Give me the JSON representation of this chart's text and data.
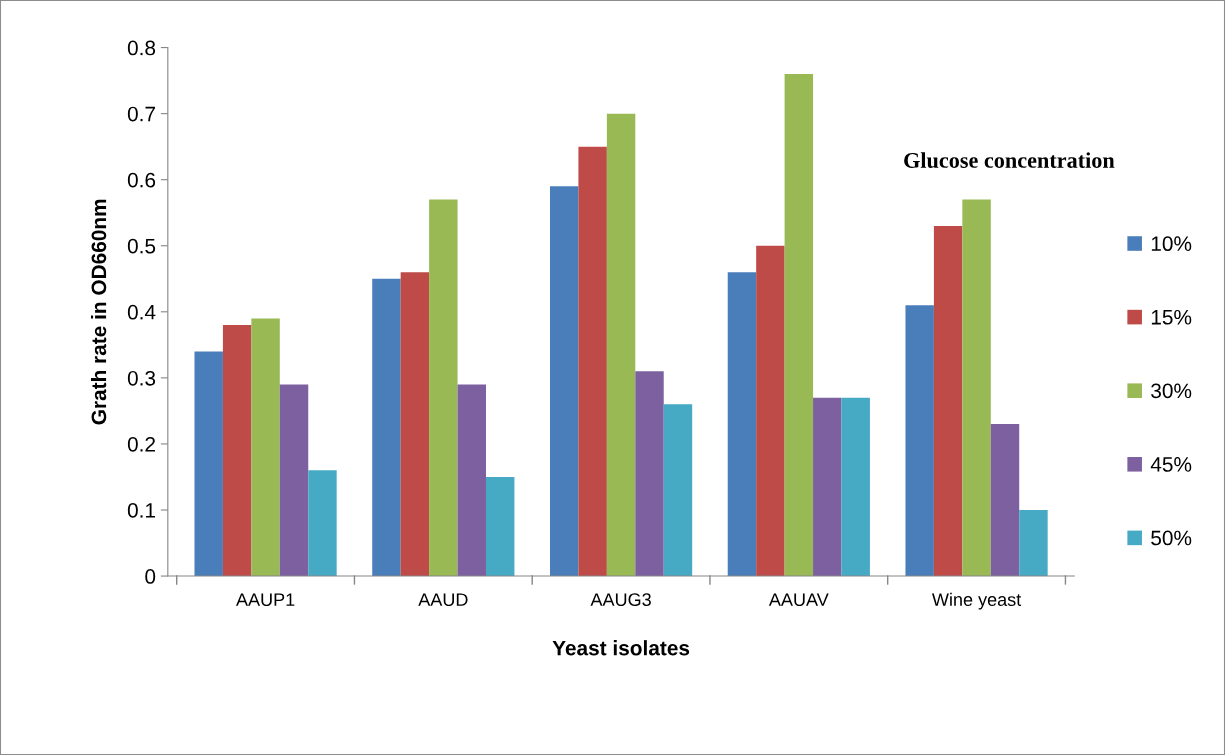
{
  "chart_data": {
    "type": "bar",
    "xlabel": "Yeast isolates",
    "ylabel": "Grath rate in OD660nm",
    "legend_title": "Glucose concentration",
    "categories": [
      "AAUP1",
      "AAUD",
      "AAUG3",
      "AAUAV",
      "Wine yeast"
    ],
    "series": [
      {
        "name": "10%",
        "color": "#4a7ebb",
        "values": [
          0.34,
          0.45,
          0.59,
          0.46,
          0.41
        ]
      },
      {
        "name": "15%",
        "color": "#be4b48",
        "values": [
          0.38,
          0.46,
          0.65,
          0.5,
          0.53
        ]
      },
      {
        "name": "30%",
        "color": "#98b954",
        "values": [
          0.39,
          0.57,
          0.7,
          0.76,
          0.57
        ]
      },
      {
        "name": "45%",
        "color": "#7d60a0",
        "values": [
          0.29,
          0.29,
          0.31,
          0.27,
          0.23
        ]
      },
      {
        "name": "50%",
        "color": "#46aac5",
        "values": [
          0.16,
          0.15,
          0.26,
          0.27,
          0.1
        ]
      }
    ],
    "ylim": [
      0,
      0.8
    ],
    "yticks": [
      0,
      0.1,
      0.2,
      0.3,
      0.4,
      0.5,
      0.6,
      0.7,
      0.8
    ],
    "grid": false,
    "legend": "right"
  }
}
